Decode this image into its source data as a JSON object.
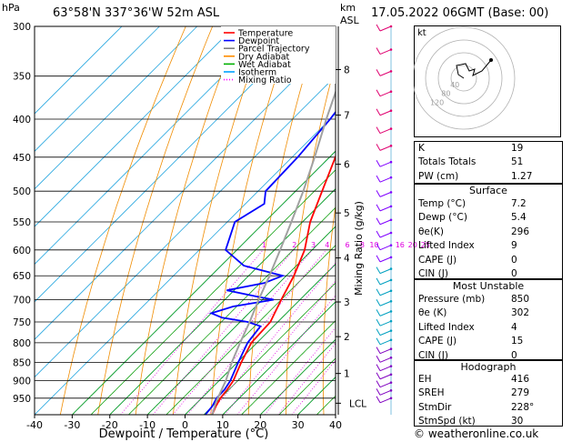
{
  "header": {
    "hpa_label": "hPa",
    "location": "63°58'N 337°36'W 52m ASL",
    "km_label": "km",
    "asl_label": "ASL",
    "datetime": "17.05.2022 06GMT (Base: 00)"
  },
  "legend": {
    "items": [
      {
        "label": "Temperature",
        "color": "#ff0000",
        "style": "solid"
      },
      {
        "label": "Dewpoint",
        "color": "#0000ff",
        "style": "solid"
      },
      {
        "label": "Parcel Trajectory",
        "color": "#808080",
        "style": "solid"
      },
      {
        "label": "Dry Adiabat",
        "color": "#ff8c00",
        "style": "solid"
      },
      {
        "label": "Wet Adiabat",
        "color": "#00b000",
        "style": "solid"
      },
      {
        "label": "Isotherm",
        "color": "#00a0ff",
        "style": "solid"
      },
      {
        "label": "Mixing Ratio",
        "color": "#ff00ff",
        "style": "dotted"
      }
    ]
  },
  "chart_data": {
    "type": "line",
    "xlabel": "Dewpoint / Temperature (°C)",
    "ylabel_left": "hPa",
    "ylabel_right": "Mixing Ratio (g/kg)",
    "x_ticks": [
      "-40",
      "-30",
      "-20",
      "-10",
      "0",
      "10",
      "20",
      "30",
      "40"
    ],
    "xlim": [
      -40,
      40
    ],
    "pressure_levels": [
      "300",
      "350",
      "400",
      "450",
      "500",
      "550",
      "600",
      "650",
      "700",
      "750",
      "800",
      "850",
      "900",
      "950"
    ],
    "ylim_hpa": [
      300,
      1000
    ],
    "y_scale": "log",
    "skew": "isotherms tilted 45°",
    "km_ticks": [
      "8",
      "7",
      "6",
      "5",
      "4",
      "3",
      "2",
      "1",
      "LCL"
    ],
    "km_tick_pressures": [
      343,
      395,
      460,
      535,
      615,
      705,
      785,
      880,
      965
    ],
    "mixing_ratio_labels": [
      "1",
      "2",
      "3",
      "4",
      "6",
      "8",
      "10",
      "16",
      "20",
      "25"
    ],
    "series": [
      {
        "name": "Temperature",
        "color": "#ff0000",
        "points": [
          [
            1000,
            7.2
          ],
          [
            975,
            6.0
          ],
          [
            950,
            5.0
          ],
          [
            925,
            4.5
          ],
          [
            900,
            3.8
          ],
          [
            850,
            1.0
          ],
          [
            800,
            -1.5
          ],
          [
            750,
            -2.0
          ],
          [
            700,
            -5.0
          ],
          [
            650,
            -8.0
          ],
          [
            600,
            -12.0
          ],
          [
            550,
            -18.0
          ],
          [
            500,
            -23.0
          ],
          [
            450,
            -28.5
          ],
          [
            400,
            -35.0
          ],
          [
            350,
            -42.0
          ],
          [
            320,
            -46.5
          ],
          [
            300,
            -49.5
          ]
        ]
      },
      {
        "name": "Dewpoint",
        "color": "#0000ff",
        "points": [
          [
            1000,
            5.4
          ],
          [
            975,
            5.0
          ],
          [
            950,
            4.0
          ],
          [
            925,
            3.8
          ],
          [
            900,
            3.0
          ],
          [
            850,
            0.2
          ],
          [
            800,
            -2.5
          ],
          [
            760,
            -3.5
          ],
          [
            750,
            -8.0
          ],
          [
            740,
            -16.0
          ],
          [
            730,
            -20.0
          ],
          [
            715,
            -16.0
          ],
          [
            700,
            -7.0
          ],
          [
            695,
            -11.0
          ],
          [
            680,
            -22.0
          ],
          [
            665,
            -14.0
          ],
          [
            650,
            -11.0
          ],
          [
            630,
            -24.0
          ],
          [
            600,
            -33.0
          ],
          [
            550,
            -38.0
          ],
          [
            520,
            -35.0
          ],
          [
            500,
            -38.0
          ],
          [
            450,
            -38.5
          ],
          [
            400,
            -40.0
          ],
          [
            380,
            -41.0
          ],
          [
            360,
            -39.0
          ],
          [
            340,
            -40.0
          ],
          [
            320,
            -42.0
          ],
          [
            300,
            -45.0
          ]
        ]
      },
      {
        "name": "Parcel Trajectory",
        "color": "#a0a0a0",
        "points": [
          [
            1000,
            7.2
          ],
          [
            960,
            4.8
          ],
          [
            900,
            1.8
          ],
          [
            850,
            -1.5
          ],
          [
            800,
            -4.5
          ],
          [
            750,
            -7.5
          ],
          [
            700,
            -11.0
          ],
          [
            650,
            -14.5
          ],
          [
            600,
            -18.5
          ],
          [
            550,
            -23.0
          ],
          [
            500,
            -28.0
          ],
          [
            450,
            -34.0
          ],
          [
            400,
            -41.0
          ],
          [
            350,
            -48.5
          ],
          [
            300,
            -56.0
          ]
        ]
      }
    ],
    "wind_barbs_count": 30
  },
  "hodograph": {
    "label": "kt",
    "ring_labels": [
      "40",
      "80",
      "120"
    ]
  },
  "indices": {
    "rows": [
      {
        "label": "K",
        "value": "19"
      },
      {
        "label": "Totals Totals",
        "value": "51"
      },
      {
        "label": "PW (cm)",
        "value": "1.27"
      }
    ]
  },
  "surface": {
    "title": "Surface",
    "rows": [
      {
        "label": "Temp (°C)",
        "value": "7.2"
      },
      {
        "label": "Dewp (°C)",
        "value": "5.4"
      },
      {
        "label": "θe(K)",
        "value": "296"
      },
      {
        "label": "Lifted Index",
        "value": "9"
      },
      {
        "label": "CAPE (J)",
        "value": "0"
      },
      {
        "label": "CIN (J)",
        "value": "0"
      }
    ]
  },
  "most_unstable": {
    "title": "Most Unstable",
    "rows": [
      {
        "label": "Pressure (mb)",
        "value": "850"
      },
      {
        "label": "θe (K)",
        "value": "302"
      },
      {
        "label": "Lifted Index",
        "value": "4"
      },
      {
        "label": "CAPE (J)",
        "value": "15"
      },
      {
        "label": "CIN (J)",
        "value": "0"
      }
    ]
  },
  "hodograph_stats": {
    "title": "Hodograph",
    "rows": [
      {
        "label": "EH",
        "value": "416"
      },
      {
        "label": "SREH",
        "value": "279"
      },
      {
        "label": "StmDir",
        "value": "228°"
      },
      {
        "label": "StmSpd (kt)",
        "value": "30"
      }
    ]
  },
  "footer": {
    "copyright": "© weatheronline.co.uk"
  }
}
